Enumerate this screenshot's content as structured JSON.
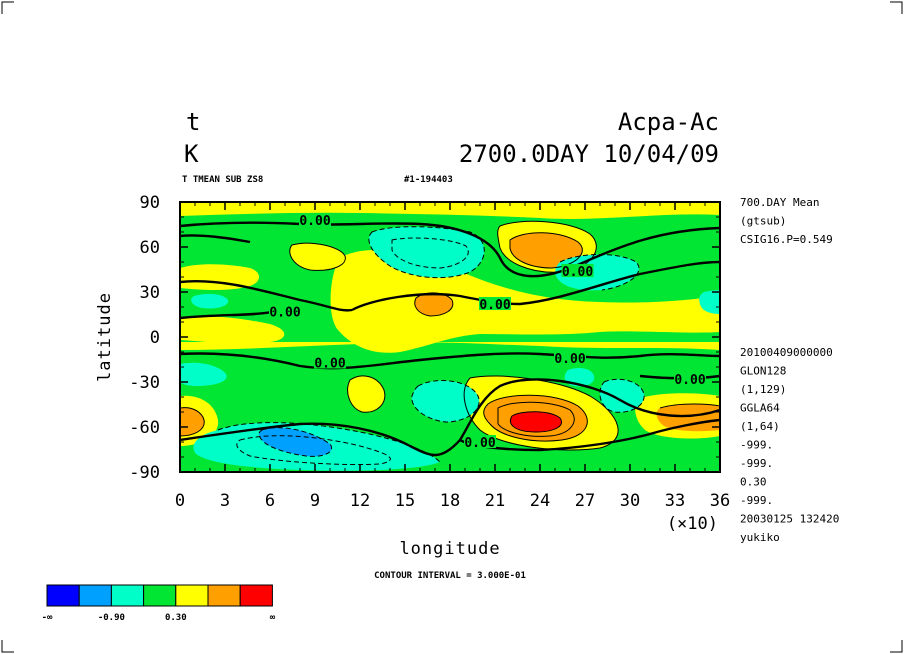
{
  "header": {
    "variable": "t",
    "units": "K",
    "experiment": "Acpa-Ac",
    "time_stamp": "2700.0DAY 10/04/09",
    "subtitle_left": "T TMEAN SUB ZS8",
    "subtitle_right": "#1-194403"
  },
  "right_info": {
    "top": [
      "700.DAY Mean",
      "(gtsub)",
      "CSIG16.P=0.549"
    ],
    "bottom": [
      "20100409000000",
      "GLON128",
      "(1,129)",
      "GGLA64",
      "(1,64)",
      "-999.",
      "-999.",
      "0.30",
      "-999.",
      "20030125 132420",
      "yukiko"
    ]
  },
  "footer": {
    "contour_interval": "CONTOUR INTERVAL = 3.000E-01"
  },
  "colorbar": {
    "colors": [
      "#0000ff",
      "#00a0ff",
      "#00ffc8",
      "#00e632",
      "#ffff00",
      "#ffa000",
      "#ff0000"
    ],
    "labels": [
      "-∞",
      "-0.90",
      "0.30",
      "∞"
    ]
  },
  "chart_data": {
    "type": "heatmap",
    "xlabel": "longitude",
    "ylabel": "latitude",
    "x_multiplier": "(×10)",
    "xlim": [
      0,
      36
    ],
    "ylim": [
      -90,
      90
    ],
    "x_ticks": [
      0,
      3,
      6,
      9,
      12,
      15,
      18,
      21,
      24,
      27,
      30,
      33,
      36
    ],
    "y_ticks": [
      90,
      60,
      30,
      0,
      -30,
      -60,
      -90
    ],
    "contour_labels": [
      {
        "text": "0.00",
        "x": 9.0,
        "y": 78
      },
      {
        "text": "0.00",
        "x": 7.0,
        "y": 17
      },
      {
        "text": "0.00",
        "x": 21.0,
        "y": 22
      },
      {
        "text": "0.00",
        "x": 26.5,
        "y": 44
      },
      {
        "text": "0.00",
        "x": 10.0,
        "y": -17
      },
      {
        "text": "0.00",
        "x": 26.0,
        "y": -14
      },
      {
        "text": "0.00",
        "x": 34.0,
        "y": -28
      },
      {
        "text": "0.00",
        "x": 20.0,
        "y": -70
      }
    ]
  }
}
